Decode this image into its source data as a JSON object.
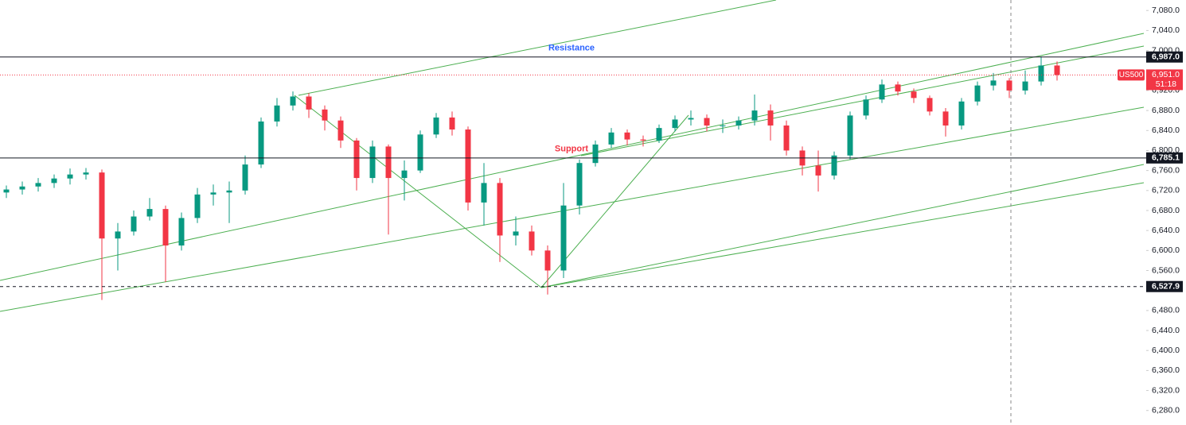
{
  "chart_data": {
    "type": "candlestick",
    "symbol": "US500",
    "countdown": "51:18",
    "up_color": "#089981",
    "down_color": "#f23645",
    "ylim": [
      6251,
      7101
    ],
    "yticks": [
      {
        "value": 7080,
        "label": "7,080.0"
      },
      {
        "value": 7040,
        "label": "7,040.0"
      },
      {
        "value": 7000,
        "label": "7,000.0"
      },
      {
        "value": 6920,
        "label": "6,920.0"
      },
      {
        "value": 6880,
        "label": "6,880.0"
      },
      {
        "value": 6840,
        "label": "6,840.0"
      },
      {
        "value": 6800,
        "label": "6,800.0"
      },
      {
        "value": 6760,
        "label": "6,760.0"
      },
      {
        "value": 6720,
        "label": "6,720.0"
      },
      {
        "value": 6680,
        "label": "6,680.0"
      },
      {
        "value": 6640,
        "label": "6,640.0"
      },
      {
        "value": 6600,
        "label": "6,600.0"
      },
      {
        "value": 6560,
        "label": "6,560.0"
      },
      {
        "value": 6480,
        "label": "6,480.0"
      },
      {
        "value": 6440,
        "label": "6,440.0"
      },
      {
        "value": 6400,
        "label": "6,400.0"
      },
      {
        "value": 6360,
        "label": "6,360.0"
      },
      {
        "value": 6320,
        "label": "6,320.0"
      },
      {
        "value": 6280,
        "label": "6,280.0"
      }
    ],
    "levels": [
      {
        "value": 6987,
        "label": "6,987.0",
        "style": "solid"
      },
      {
        "value": 6785.1,
        "label": "6,785.1",
        "style": "solid"
      },
      {
        "value": 6527.9,
        "label": "6,527.9",
        "style": "dashed"
      }
    ],
    "annotations": [
      {
        "text": "Resistance",
        "color": "#2962ff"
      },
      {
        "text": "Support",
        "color": "#f23645"
      }
    ],
    "last_price": {
      "value": 6951,
      "label": "6,951.0",
      "color": "#f23645"
    },
    "open": [
      6716,
      6722,
      6728,
      6735,
      6744,
      6752,
      6756,
      6624,
      6638,
      6668,
      6683,
      6610,
      6665,
      6712,
      6716,
      6720,
      6772,
      6858,
      6890,
      6908,
      6882,
      6860,
      6820,
      6745,
      6808,
      6745,
      6760,
      6832,
      6866,
      6842,
      6696,
      6735,
      6630,
      6638,
      6600,
      6560,
      6690,
      6775,
      6812,
      6836,
      6822,
      6820,
      6845,
      6862,
      6865,
      6850,
      6850,
      6860,
      6880,
      6850,
      6800,
      6770,
      6750,
      6790,
      6870,
      6902,
      6932,
      6918,
      6905,
      6878,
      6850,
      6898,
      6930,
      6940,
      6920,
      6938,
      6970
    ],
    "high": [
      6730,
      6738,
      6745,
      6752,
      6764,
      6765,
      6762,
      6655,
      6680,
      6705,
      6690,
      6676,
      6725,
      6732,
      6738,
      6790,
      6866,
      6905,
      6918,
      6915,
      6890,
      6868,
      6825,
      6820,
      6812,
      6780,
      6840,
      6875,
      6878,
      6848,
      6775,
      6745,
      6668,
      6650,
      6610,
      6735,
      6782,
      6820,
      6845,
      6842,
      6830,
      6852,
      6870,
      6880,
      6872,
      6862,
      6868,
      6912,
      6892,
      6860,
      6808,
      6800,
      6798,
      6878,
      6910,
      6942,
      6938,
      6924,
      6910,
      6885,
      6905,
      6938,
      6955,
      6945,
      6960,
      6988,
      6978
    ],
    "low": [
      6705,
      6712,
      6718,
      6725,
      6732,
      6742,
      6501,
      6560,
      6630,
      6660,
      6537,
      6600,
      6655,
      6690,
      6655,
      6712,
      6765,
      6848,
      6880,
      6865,
      6840,
      6805,
      6720,
      6735,
      6632,
      6700,
      6755,
      6825,
      6830,
      6680,
      6650,
      6577,
      6610,
      6590,
      6512,
      6545,
      6672,
      6768,
      6805,
      6810,
      6808,
      6815,
      6838,
      6850,
      6838,
      6835,
      6842,
      6850,
      6820,
      6790,
      6750,
      6718,
      6742,
      6782,
      6862,
      6895,
      6910,
      6895,
      6870,
      6828,
      6842,
      6890,
      6920,
      6905,
      6912,
      6930,
      6940
    ],
    "close": [
      6722,
      6728,
      6735,
      6744,
      6752,
      6756,
      6624,
      6638,
      6668,
      6683,
      6610,
      6665,
      6712,
      6716,
      6720,
      6772,
      6858,
      6890,
      6908,
      6882,
      6860,
      6820,
      6745,
      6808,
      6745,
      6760,
      6832,
      6866,
      6842,
      6696,
      6735,
      6630,
      6638,
      6600,
      6560,
      6690,
      6775,
      6812,
      6836,
      6822,
      6820,
      6845,
      6862,
      6865,
      6850,
      6850,
      6860,
      6880,
      6850,
      6800,
      6770,
      6750,
      6790,
      6870,
      6902,
      6932,
      6918,
      6905,
      6878,
      6850,
      6898,
      6930,
      6940,
      6920,
      6938,
      6970,
      6951
    ]
  }
}
